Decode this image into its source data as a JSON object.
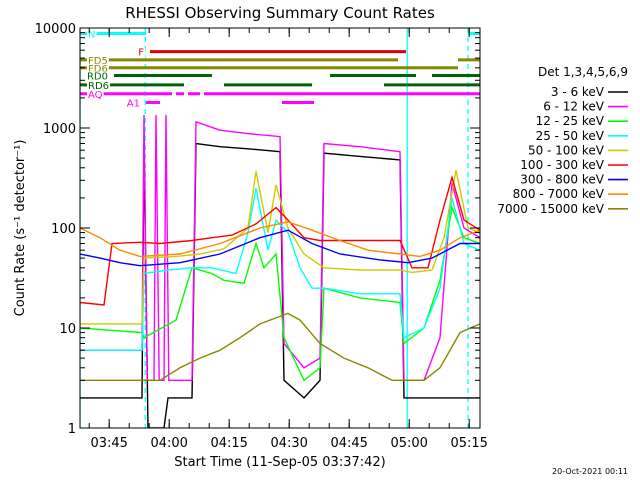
{
  "chart_data": {
    "type": "line",
    "title": "RHESSI Observing Summary Count Rates",
    "xlabel": "Start Time (11-Sep-05 03:37:42)",
    "ylabel": "Count Rate (s⁻¹ detector⁻¹)",
    "footer": "20-Oct-2021 00:11",
    "x_unit": "minutes after 03:37:42",
    "xlim": [
      0,
      100
    ],
    "ylim": [
      1,
      10000
    ],
    "yscale": "log",
    "xticks": [
      {
        "label": "03:45",
        "t": 7.3
      },
      {
        "label": "04:00",
        "t": 22.3
      },
      {
        "label": "04:15",
        "t": 37.3
      },
      {
        "label": "04:30",
        "t": 52.3
      },
      {
        "label": "04:45",
        "t": 67.3
      },
      {
        "label": "05:00",
        "t": 82.3
      },
      {
        "label": "05:15",
        "t": 97.3
      }
    ],
    "yticks": [
      1,
      10,
      100,
      1000,
      10000
    ],
    "legend_title": "Det 1,3,4,5,6,9",
    "legend_position": "right",
    "series": [
      {
        "name": "3 - 6 keV",
        "color": "#000000",
        "points": [
          [
            0,
            2
          ],
          [
            15.5,
            2
          ],
          [
            16,
            700
          ],
          [
            17,
            1
          ],
          [
            21,
            1
          ],
          [
            22,
            2
          ],
          [
            28,
            2
          ],
          [
            29,
            700
          ],
          [
            35,
            650
          ],
          [
            42,
            620
          ],
          [
            50,
            580
          ],
          [
            51,
            3
          ],
          [
            56,
            2
          ],
          [
            60,
            3
          ],
          [
            61,
            560
          ],
          [
            70,
            520
          ],
          [
            80,
            480
          ],
          [
            81,
            2
          ],
          [
            86,
            2
          ],
          [
            92,
            2
          ],
          [
            96,
            2
          ],
          [
            100,
            2
          ]
        ]
      },
      {
        "name": "6 - 12 keV",
        "color": "#ff00ff",
        "points": [
          [
            0,
            6
          ],
          [
            15.5,
            6
          ],
          [
            16,
            1350
          ],
          [
            16.8,
            3
          ],
          [
            18.5,
            3
          ],
          [
            19,
            1350
          ],
          [
            19.8,
            3
          ],
          [
            21,
            3
          ],
          [
            21.5,
            1350
          ],
          [
            22.2,
            3
          ],
          [
            28,
            3
          ],
          [
            29,
            1150
          ],
          [
            35,
            950
          ],
          [
            42,
            880
          ],
          [
            50,
            820
          ],
          [
            51,
            7
          ],
          [
            56,
            4
          ],
          [
            60,
            5
          ],
          [
            61,
            700
          ],
          [
            70,
            650
          ],
          [
            80,
            580
          ],
          [
            81,
            3
          ],
          [
            86,
            3
          ],
          [
            90,
            8
          ],
          [
            93,
            280
          ],
          [
            96,
            100
          ],
          [
            100,
            80
          ]
        ]
      },
      {
        "name": "12 - 25 keV",
        "color": "#00ff00",
        "points": [
          [
            0,
            10
          ],
          [
            15.5,
            9
          ],
          [
            16,
            8
          ],
          [
            24,
            12
          ],
          [
            28,
            40
          ],
          [
            33,
            35
          ],
          [
            36,
            30
          ],
          [
            41,
            28
          ],
          [
            44,
            70
          ],
          [
            46,
            40
          ],
          [
            49,
            55
          ],
          [
            51,
            8
          ],
          [
            56,
            3
          ],
          [
            60,
            4
          ],
          [
            61,
            25
          ],
          [
            70,
            20
          ],
          [
            80,
            18
          ],
          [
            81,
            7
          ],
          [
            86,
            10
          ],
          [
            90,
            30
          ],
          [
            93,
            160
          ],
          [
            96,
            80
          ],
          [
            100,
            70
          ]
        ]
      },
      {
        "name": "25 - 50 keV",
        "color": "#00ffff",
        "points": [
          [
            0,
            6
          ],
          [
            15.5,
            6
          ],
          [
            16,
            35
          ],
          [
            22,
            38
          ],
          [
            28,
            40
          ],
          [
            33,
            40
          ],
          [
            39,
            35
          ],
          [
            42,
            90
          ],
          [
            44,
            250
          ],
          [
            47,
            60
          ],
          [
            49,
            120
          ],
          [
            52,
            90
          ],
          [
            55,
            40
          ],
          [
            58,
            25
          ],
          [
            61,
            25
          ],
          [
            70,
            22
          ],
          [
            80,
            22
          ],
          [
            81,
            8
          ],
          [
            86,
            10
          ],
          [
            90,
            25
          ],
          [
            93,
            200
          ],
          [
            96,
            70
          ],
          [
            100,
            60
          ]
        ]
      },
      {
        "name": "50 - 100 keV",
        "color": "#cccc00",
        "points": [
          [
            0,
            11
          ],
          [
            15.5,
            11
          ],
          [
            16,
            50
          ],
          [
            24,
            52
          ],
          [
            30,
            55
          ],
          [
            36,
            62
          ],
          [
            42,
            100
          ],
          [
            44,
            370
          ],
          [
            47,
            90
          ],
          [
            49,
            270
          ],
          [
            52,
            100
          ],
          [
            56,
            55
          ],
          [
            61,
            40
          ],
          [
            70,
            38
          ],
          [
            80,
            38
          ],
          [
            83,
            36
          ],
          [
            88,
            38
          ],
          [
            91,
            80
          ],
          [
            94,
            380
          ],
          [
            97,
            100
          ],
          [
            100,
            90
          ]
        ]
      },
      {
        "name": "100 - 300 keV",
        "color": "#ff0000",
        "points": [
          [
            0,
            18
          ],
          [
            6,
            17
          ],
          [
            8,
            70
          ],
          [
            15,
            72
          ],
          [
            20,
            70
          ],
          [
            28,
            75
          ],
          [
            33,
            80
          ],
          [
            38,
            85
          ],
          [
            44,
            110
          ],
          [
            49,
            160
          ],
          [
            52,
            120
          ],
          [
            56,
            80
          ],
          [
            60,
            75
          ],
          [
            70,
            75
          ],
          [
            80,
            75
          ],
          [
            83,
            40
          ],
          [
            87,
            40
          ],
          [
            90,
            120
          ],
          [
            93,
            320
          ],
          [
            96,
            120
          ],
          [
            100,
            95
          ]
        ]
      },
      {
        "name": "300 - 800 keV",
        "color": "#0000ff",
        "points": [
          [
            0,
            55
          ],
          [
            5,
            50
          ],
          [
            10,
            45
          ],
          [
            15,
            42
          ],
          [
            25,
            45
          ],
          [
            35,
            55
          ],
          [
            45,
            80
          ],
          [
            52,
            95
          ],
          [
            58,
            70
          ],
          [
            65,
            55
          ],
          [
            75,
            48
          ],
          [
            82,
            45
          ],
          [
            88,
            50
          ],
          [
            95,
            70
          ],
          [
            100,
            70
          ]
        ]
      },
      {
        "name": "800 - 7000 keV",
        "color": "#ff8800",
        "points": [
          [
            0,
            100
          ],
          [
            5,
            80
          ],
          [
            10,
            60
          ],
          [
            15,
            52
          ],
          [
            25,
            55
          ],
          [
            35,
            70
          ],
          [
            45,
            100
          ],
          [
            52,
            115
          ],
          [
            58,
            95
          ],
          [
            65,
            75
          ],
          [
            72,
            60
          ],
          [
            80,
            55
          ],
          [
            85,
            52
          ],
          [
            90,
            60
          ],
          [
            95,
            80
          ],
          [
            100,
            95
          ]
        ]
      },
      {
        "name": "7000 - 15000 keV",
        "color": "#888800",
        "points": [
          [
            0,
            3
          ],
          [
            10,
            3
          ],
          [
            20,
            3
          ],
          [
            25,
            4
          ],
          [
            30,
            5
          ],
          [
            35,
            6
          ],
          [
            40,
            8
          ],
          [
            45,
            11
          ],
          [
            52,
            14
          ],
          [
            55,
            12
          ],
          [
            60,
            7
          ],
          [
            66,
            5
          ],
          [
            72,
            4
          ],
          [
            78,
            3
          ],
          [
            82,
            3
          ],
          [
            86,
            3
          ],
          [
            90,
            4
          ],
          [
            95,
            9
          ],
          [
            100,
            11
          ]
        ]
      }
    ],
    "status_bars": [
      {
        "label": "N",
        "color": "#00ffff",
        "level": 8800,
        "segments": [
          [
            0,
            16.5
          ],
          [
            97,
            100
          ]
        ]
      },
      {
        "label": "F",
        "color": "#dd0000",
        "level": 5800,
        "segments": [
          [
            17.5,
            81.5
          ]
        ]
      },
      {
        "label": "FD5",
        "color": "#888800",
        "level": 4800,
        "segments": [
          [
            0,
            79.5
          ],
          [
            94.5,
            100
          ]
        ]
      },
      {
        "label": "FD6",
        "color": "#888800",
        "level": 4000,
        "segments": [
          [
            0,
            94.5
          ]
        ]
      },
      {
        "label": "RD0",
        "color": "#006600",
        "level": 3350,
        "segments": [
          [
            8.5,
            33
          ],
          [
            62.5,
            84
          ],
          [
            88,
            100
          ]
        ]
      },
      {
        "label": "RD6",
        "color": "#006600",
        "level": 2700,
        "segments": [
          [
            0,
            26
          ],
          [
            36,
            58
          ],
          [
            76,
            100
          ]
        ]
      },
      {
        "label": "AQ",
        "color": "#ff00ff",
        "level": 2200,
        "segments": [
          [
            0,
            23
          ],
          [
            24,
            26
          ],
          [
            27,
            30
          ],
          [
            31,
            100
          ]
        ]
      },
      {
        "label": "A1",
        "color": "#ff00ff",
        "level": 1800,
        "segments": [
          [
            16.5,
            20
          ],
          [
            50.5,
            58.5
          ]
        ]
      }
    ],
    "vlines": [
      {
        "t": 0,
        "color": "#00ffff",
        "dash": false
      },
      {
        "t": 16.3,
        "color": "#00ffff",
        "dash": true
      },
      {
        "t": 81.8,
        "color": "#00ffff",
        "dash": false
      },
      {
        "t": 97.0,
        "color": "#00ffff",
        "dash": true
      }
    ]
  }
}
